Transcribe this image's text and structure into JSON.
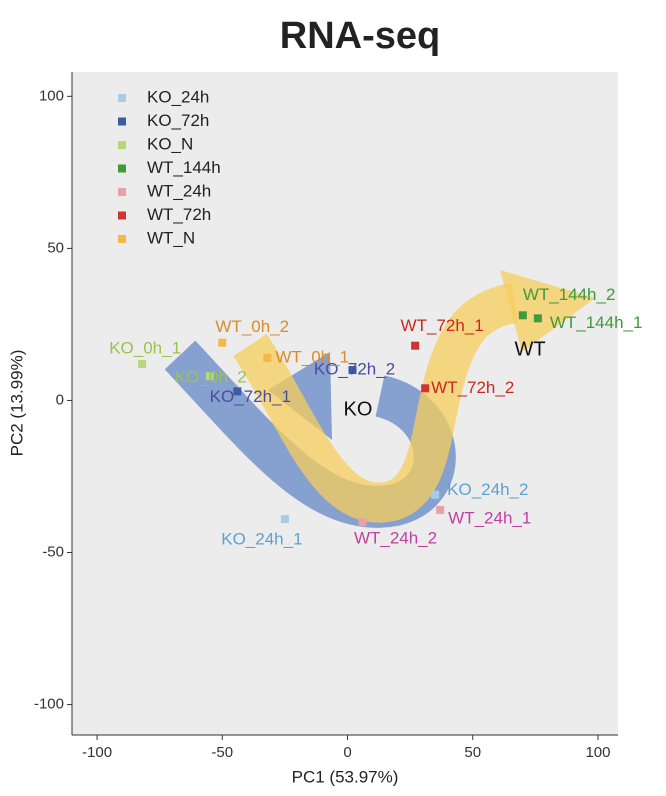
{
  "chart_data": {
    "type": "scatter",
    "title": "RNA-seq",
    "x_label": "PC1 (53.97%)",
    "y_label": "PC2 (13.99%)",
    "xlim": [
      -110,
      108
    ],
    "ylim": [
      -110,
      108
    ],
    "xticks": [
      -100,
      -50,
      0,
      50,
      100
    ],
    "yticks": [
      -100,
      -50,
      0,
      50,
      100
    ],
    "grid": false,
    "legend": "upper left",
    "annotations": [
      "KO",
      "WT"
    ],
    "series": [
      {
        "name": "KO_24h",
        "color": "#a9cbe6",
        "label_color": "#5aa2d4",
        "x": [
          -25,
          35
        ],
        "values": [
          -39,
          -31
        ],
        "labels": [
          "KO_24h_1",
          "KO_24h_2"
        ]
      },
      {
        "name": "KO_72h",
        "color": "#3b5ca6",
        "label_color": "#4a4d9e",
        "x": [
          -44,
          2
        ],
        "values": [
          3,
          10
        ],
        "labels": [
          "KO_72h_1",
          "KO_72h_2"
        ]
      },
      {
        "name": "KO_N",
        "color": "#b6d67c",
        "label_color": "#9cc24e",
        "x": [
          -82,
          -55
        ],
        "values": [
          12,
          8
        ],
        "labels": [
          "KO_0h_1",
          "KO_0h_2"
        ]
      },
      {
        "name": "WT_144h",
        "color": "#3f9a3c",
        "label_color": "#3f9a3c",
        "x": [
          70,
          76
        ],
        "values": [
          28,
          27
        ],
        "labels": [
          "WT_144h_2",
          "WT_144h_1"
        ]
      },
      {
        "name": "WT_24h",
        "color": "#eaa1a1",
        "label_color": "#c23f9f",
        "x": [
          37,
          6
        ],
        "values": [
          -36,
          -40
        ],
        "labels": [
          "WT_24h_1",
          "WT_24h_2"
        ]
      },
      {
        "name": "WT_72h",
        "color": "#d13232",
        "label_color": "#c8281e",
        "x": [
          27,
          31
        ],
        "values": [
          18,
          4
        ],
        "labels": [
          "WT_72h_1",
          "WT_72h_2"
        ]
      },
      {
        "name": "WT_N",
        "color": "#f4b74a",
        "label_color": "#d98c2a",
        "x": [
          -50,
          -32
        ],
        "values": [
          19,
          14
        ],
        "labels": [
          "WT_0h_2",
          "WT_0h_1"
        ]
      }
    ]
  }
}
